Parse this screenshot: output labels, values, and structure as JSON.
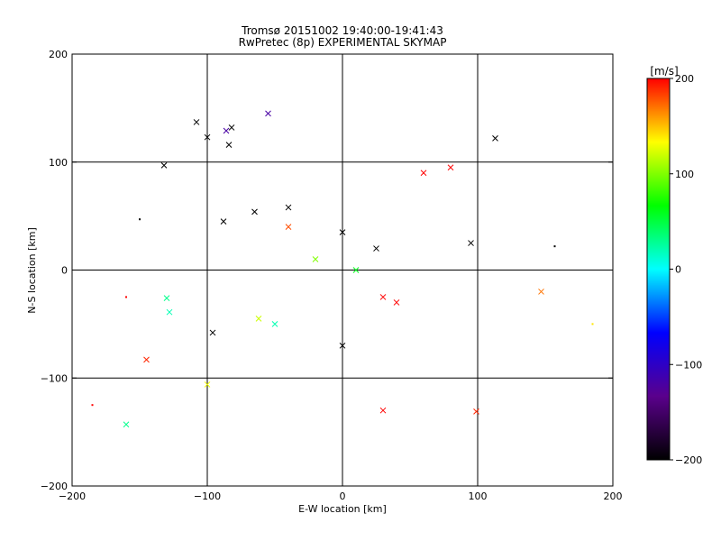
{
  "chart_data": {
    "type": "scatter",
    "title": "Tromsø 20151002 19:40:00-19:41:43",
    "subtitle": "RwPretec (8p) EXPERIMENTAL SKYMAP",
    "xlabel": "E-W location [km]",
    "ylabel": "N-S location [km]",
    "xlim": [
      -200,
      200
    ],
    "ylim": [
      -200,
      200
    ],
    "x_ticks": [
      -200,
      -100,
      0,
      100,
      200
    ],
    "y_ticks": [
      -200,
      -100,
      0,
      100,
      200
    ],
    "x_tick_labels": [
      "−200",
      "−100",
      "0",
      "100",
      "200"
    ],
    "y_tick_labels": [
      "−200",
      "−100",
      "0",
      "100",
      "200"
    ],
    "grid_lines": [
      -100,
      0,
      100
    ],
    "colorbar": {
      "label": "[m/s]",
      "range": [
        -200,
        200
      ],
      "ticks": [
        200,
        100,
        0,
        -100,
        -200
      ],
      "tick_labels": [
        "200",
        "100",
        "0",
        "−100",
        "−200"
      ],
      "colors": [
        "#000000",
        "#5a008c",
        "#0000ff",
        "#00ffff",
        "#00ff00",
        "#ffff00",
        "#ff0000"
      ]
    },
    "marker_types": [
      "cross (x)",
      "small dot"
    ],
    "series": [
      {
        "values": [
          {
            "x": -108,
            "y": 137,
            "v": -200,
            "m": "x"
          },
          {
            "x": -100,
            "y": 123,
            "v": -200,
            "m": "x"
          },
          {
            "x": -86,
            "y": 129,
            "v": -120,
            "m": "x"
          },
          {
            "x": -82,
            "y": 132,
            "v": -200,
            "m": "x"
          },
          {
            "x": -55,
            "y": 145,
            "v": -120,
            "m": "x"
          },
          {
            "x": -132,
            "y": 97,
            "v": -200,
            "m": "x"
          },
          {
            "x": -84,
            "y": 116,
            "v": -200,
            "m": "x"
          },
          {
            "x": -130,
            "y": -26,
            "v": 30,
            "m": "x"
          },
          {
            "x": -128,
            "y": -39,
            "v": 20,
            "m": "x"
          },
          {
            "x": -145,
            "y": -83,
            "v": 190,
            "m": "x"
          },
          {
            "x": -100,
            "y": -106,
            "v": 130,
            "m": "x"
          },
          {
            "x": -160,
            "y": -143,
            "v": 30,
            "m": "x"
          },
          {
            "x": 113,
            "y": 122,
            "v": -200,
            "m": "x"
          },
          {
            "x": 147,
            "y": -20,
            "v": 170,
            "m": "x"
          },
          {
            "x": 99,
            "y": -131,
            "v": 190,
            "m": "x"
          },
          {
            "x": -96,
            "y": -58,
            "v": -200,
            "m": "x"
          },
          {
            "x": -62,
            "y": -45,
            "v": 120,
            "m": "x"
          },
          {
            "x": -50,
            "y": -50,
            "v": 20,
            "m": "x"
          },
          {
            "x": -65,
            "y": 54,
            "v": -200,
            "m": "x"
          },
          {
            "x": -88,
            "y": 45,
            "v": -200,
            "m": "x"
          },
          {
            "x": -40,
            "y": 58,
            "v": -200,
            "m": "x"
          },
          {
            "x": 0,
            "y": 35,
            "v": -200,
            "m": "x"
          },
          {
            "x": 25,
            "y": 20,
            "v": -200,
            "m": "x"
          },
          {
            "x": 60,
            "y": 90,
            "v": 200,
            "m": "x"
          },
          {
            "x": 80,
            "y": 95,
            "v": 200,
            "m": "x"
          },
          {
            "x": 95,
            "y": 25,
            "v": -200,
            "m": "x"
          },
          {
            "x": 30,
            "y": -25,
            "v": 200,
            "m": "x"
          },
          {
            "x": 40,
            "y": -30,
            "v": 200,
            "m": "x"
          },
          {
            "x": 0,
            "y": -70,
            "v": -200,
            "m": "x"
          },
          {
            "x": 30,
            "y": -130,
            "v": 200,
            "m": "x"
          },
          {
            "x": -40,
            "y": 40,
            "v": 180,
            "m": "x"
          },
          {
            "x": -20,
            "y": 10,
            "v": 100,
            "m": "x"
          },
          {
            "x": 10,
            "y": 0,
            "v": 60,
            "m": "x"
          },
          {
            "x": -150,
            "y": 47,
            "v": -200,
            "m": "dot"
          },
          {
            "x": 157,
            "y": 22,
            "v": -200,
            "m": "dot"
          },
          {
            "x": -185,
            "y": -125,
            "v": 200,
            "m": "dot"
          },
          {
            "x": -160,
            "y": -25,
            "v": 200,
            "m": "dot"
          },
          {
            "x": 185,
            "y": -50,
            "v": 140,
            "m": "dot"
          }
        ]
      }
    ]
  }
}
